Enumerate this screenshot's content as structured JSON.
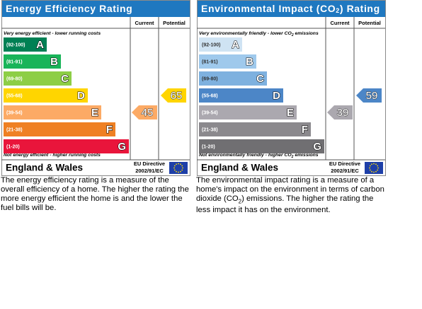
{
  "panels": [
    {
      "title": [
        "Energy Efficiency Rating"
      ],
      "columns": [
        "Current",
        "Potential"
      ],
      "top_note": [
        "Very energy efficient - lower running costs"
      ],
      "bottom_note": [
        "Not energy efficient - higher running costs"
      ],
      "bands": [
        {
          "range": "(92-100)",
          "letter": "A",
          "color": "#008054"
        },
        {
          "range": "(81-91)",
          "letter": "B",
          "color": "#19b459"
        },
        {
          "range": "(69-80)",
          "letter": "C",
          "color": "#8dce46"
        },
        {
          "range": "(55-68)",
          "letter": "D",
          "color": "#ffd500"
        },
        {
          "range": "(39-54)",
          "letter": "E",
          "color": "#fcaa65"
        },
        {
          "range": "(21-38)",
          "letter": "F",
          "color": "#ef8023"
        },
        {
          "range": "(1-20)",
          "letter": "G",
          "color": "#e9153b"
        }
      ],
      "current": 45,
      "potential": 65,
      "region": "England & Wales",
      "directive": [
        "EU Directive",
        "2002/91/EC"
      ],
      "description": [
        "The energy efficiency rating is a measure of the overall efficiency of a home. The higher the rating the more energy efficient the home is and the lower the fuel bills will be."
      ]
    },
    {
      "title": [
        "Environmental Impact (CO",
        "2",
        ") Rating"
      ],
      "columns": [
        "Current",
        "Potential"
      ],
      "top_note": [
        "Very environmentally friendly - lower CO",
        "2",
        " emissions"
      ],
      "bottom_note": [
        "Not environmentally friendly - higher CO",
        "2",
        " emissions"
      ],
      "bands": [
        {
          "range": "(92-100)",
          "letter": "A",
          "color": "#cfe3f3"
        },
        {
          "range": "(81-91)",
          "letter": "B",
          "color": "#9fc9ec"
        },
        {
          "range": "(69-80)",
          "letter": "C",
          "color": "#7eb1df"
        },
        {
          "range": "(55-68)",
          "letter": "D",
          "color": "#4c86c7"
        },
        {
          "range": "(39-54)",
          "letter": "E",
          "color": "#aba8af"
        },
        {
          "range": "(21-38)",
          "letter": "F",
          "color": "#8b898d"
        },
        {
          "range": "(1-20)",
          "letter": "G",
          "color": "#706f72"
        }
      ],
      "current": 39,
      "potential": 59,
      "region": "England & Wales",
      "directive": [
        "EU Directive",
        "2002/91/EC"
      ],
      "description": [
        "The environmental impact rating is a measure of a home's impact on the environment in terms of carbon dioxide (CO",
        "2",
        ") emissions. The higher the rating the less impact it has on the environment."
      ]
    }
  ]
}
